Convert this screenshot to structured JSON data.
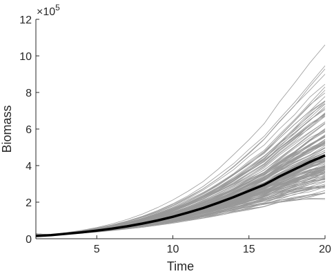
{
  "chart_data": {
    "type": "line",
    "xlabel": "Time",
    "ylabel": "Biomass",
    "exponent_label": "×10",
    "exponent_power": "5",
    "xlim": [
      1,
      20
    ],
    "ylim": [
      0,
      12
    ],
    "y_scale_factor": 100000,
    "x_ticks": [
      5,
      10,
      15,
      20
    ],
    "y_ticks": [
      0,
      2,
      4,
      6,
      8,
      10,
      12
    ],
    "grid": false,
    "series_description_mean": "thick black mean trajectory",
    "mean_series": {
      "color": "#000000",
      "x": [
        1,
        2,
        3,
        4,
        5,
        6,
        7,
        8,
        9,
        10,
        11,
        12,
        13,
        14,
        15,
        16,
        17,
        18,
        19,
        20
      ],
      "y": [
        0.15,
        0.2,
        0.27,
        0.35,
        0.44,
        0.55,
        0.68,
        0.83,
        1.0,
        1.2,
        1.43,
        1.68,
        1.97,
        2.28,
        2.62,
        2.95,
        3.4,
        3.8,
        4.2,
        4.55
      ]
    },
    "ensemble": {
      "color": "#999999",
      "count": 160,
      "spread_at_t20": {
        "min": 1.0,
        "max": 11.0
      }
    }
  }
}
